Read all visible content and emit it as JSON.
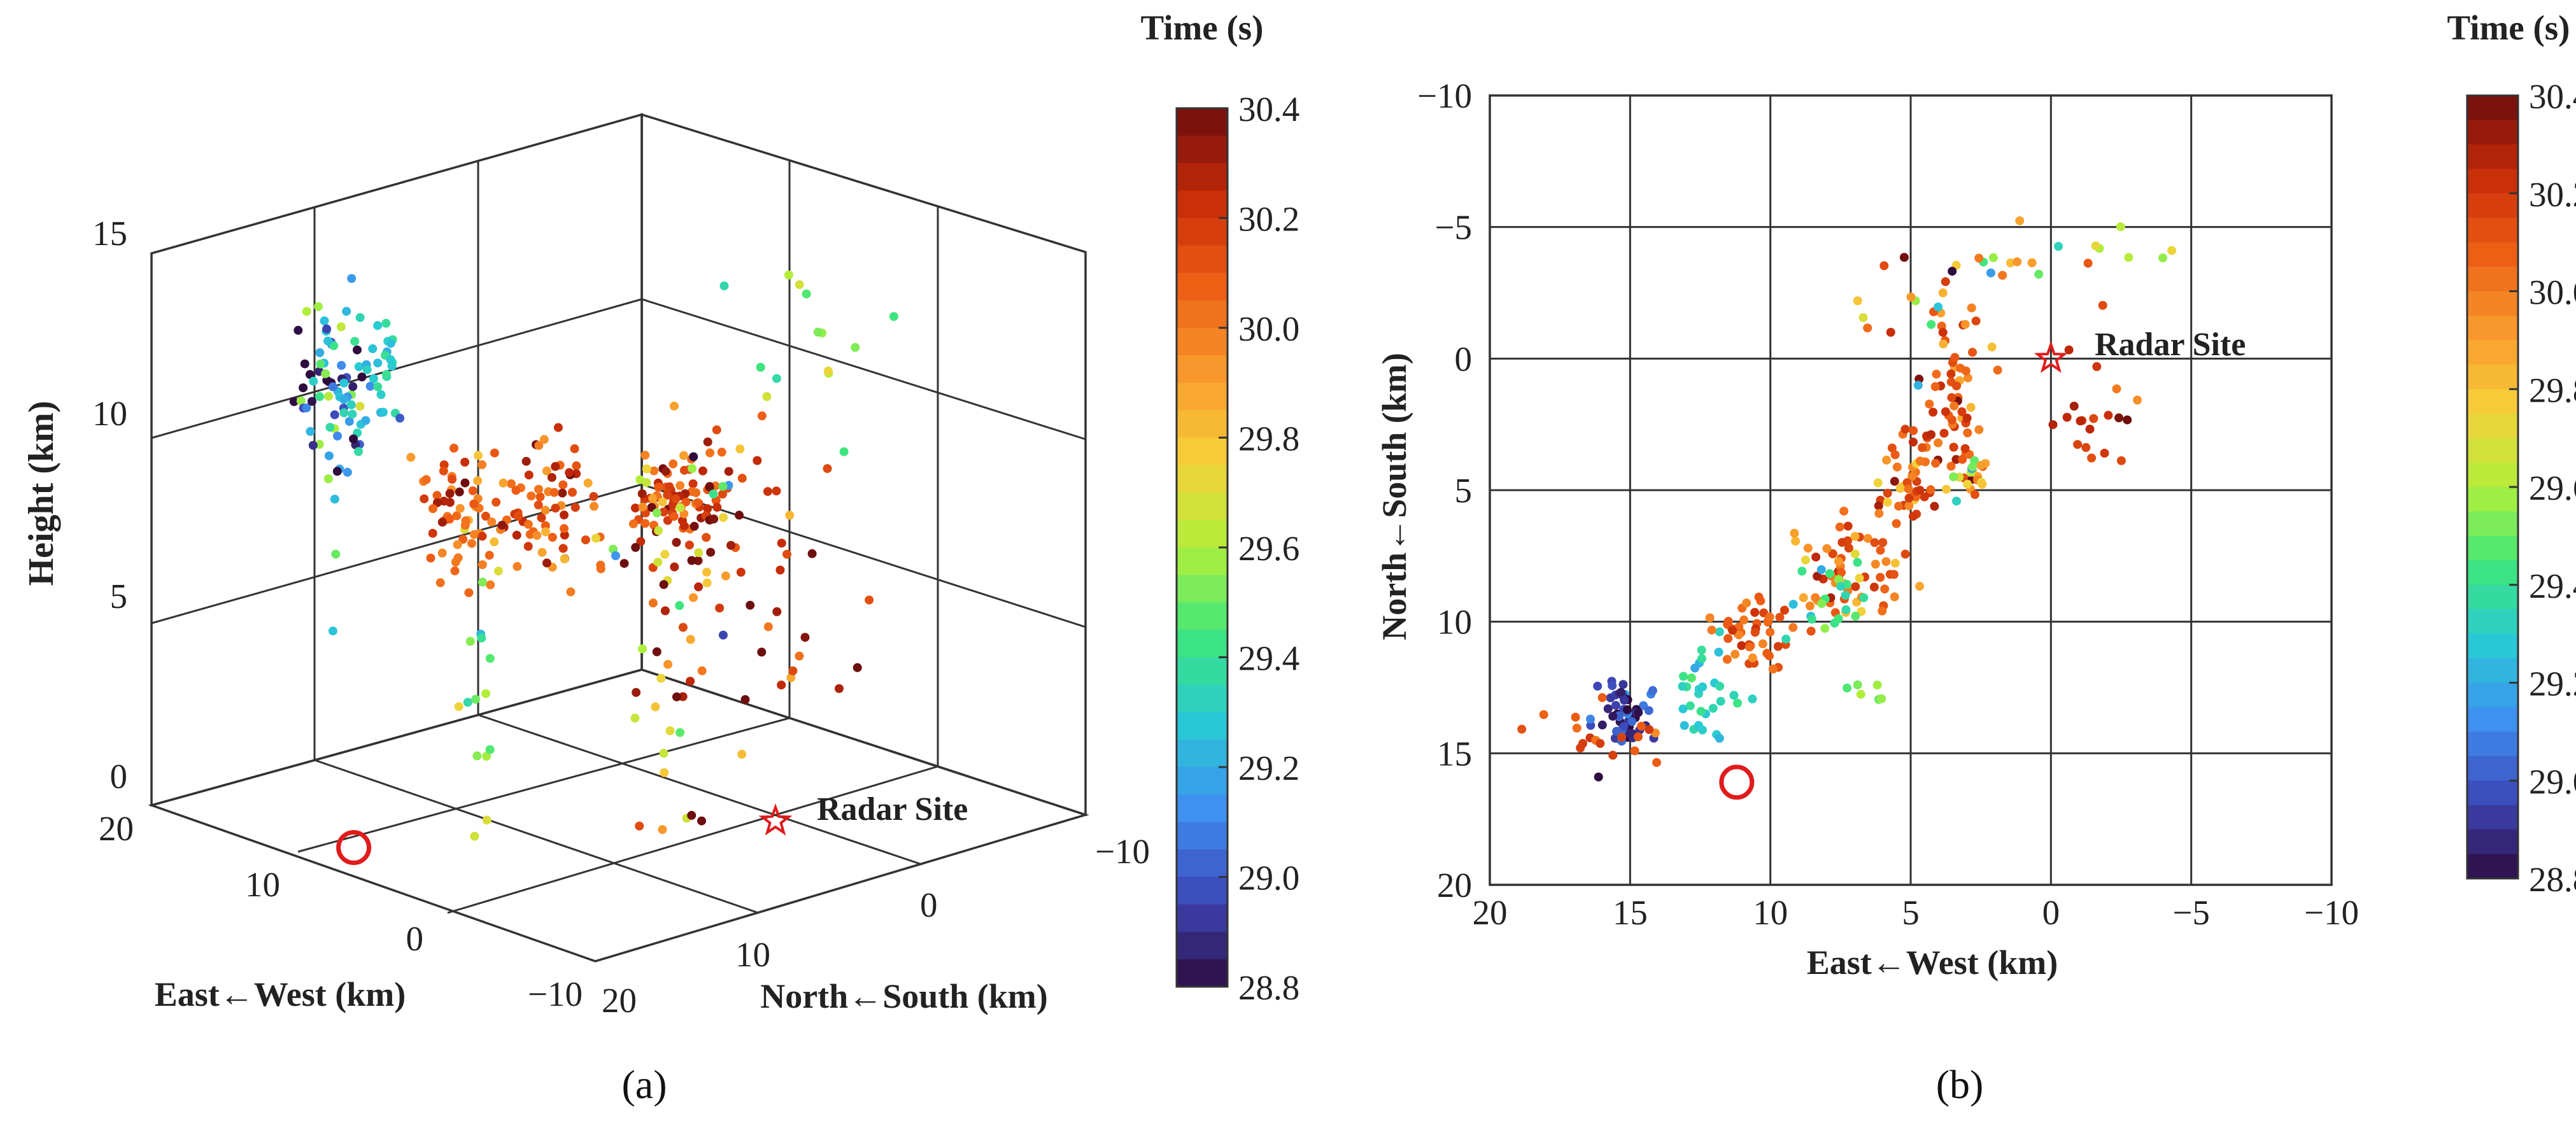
{
  "colorbar": {
    "title": "Time (s)",
    "min": 28.8,
    "max": 30.4,
    "ticks": [
      "30.4",
      "30.2",
      "30.0",
      "29.8",
      "29.6",
      "29.4",
      "29.2",
      "29.0",
      "28.8"
    ],
    "stops": [
      "#2e0a3f",
      "#3d47b8",
      "#3f8ff0",
      "#29c9d6",
      "#3ee67c",
      "#b0ef3a",
      "#f7cf3a",
      "#f8992c",
      "#ee5d15",
      "#c52a08",
      "#6e0e0e"
    ]
  },
  "chart_data": [
    {
      "type": "scatter",
      "panel_caption": "(a)",
      "view": "3d",
      "zlabel": "Height (km)",
      "xlabel": "East←West (km)",
      "ylabel": "North←South (km)",
      "zticks": [
        "15",
        "10",
        "5",
        "0"
      ],
      "xticks": [
        "20",
        "10",
        "0",
        "−10"
      ],
      "yticks": [
        "−10",
        "0",
        "10",
        "20"
      ],
      "ew_range": [
        -10,
        20
      ],
      "ns_range": [
        -10,
        20
      ],
      "height_range": [
        0,
        15
      ],
      "radar_label": "Radar Site",
      "radar_site": {
        "ew": 0,
        "ns": 0,
        "h": 0
      },
      "storm_marker": {
        "ew": 11.2,
        "ns": 16.1,
        "h": 0
      },
      "clusters": [
        {
          "ew": 15,
          "ns": 13.5,
          "h": 11.5,
          "n": 70,
          "t": 29.1,
          "se": 0.8,
          "sn": 1.0,
          "sh": 1.6,
          "st": 0.35
        },
        {
          "ew": 12,
          "ns": 13.8,
          "h": 12.6,
          "n": 30,
          "t": 29.3,
          "se": 0.6,
          "sn": 0.8,
          "sh": 0.9,
          "st": 0.07
        },
        {
          "ew": 10,
          "ns": 10.2,
          "h": 8.5,
          "n": 60,
          "t": 30.05,
          "se": 1.0,
          "sn": 0.8,
          "sh": 0.9,
          "st": 0.15
        },
        {
          "ew": 7.0,
          "ns": 7.5,
          "h": 8.6,
          "n": 70,
          "t": 30.1,
          "se": 1.2,
          "sn": 1.0,
          "sh": 0.8,
          "st": 0.15
        },
        {
          "ew": 3.5,
          "ns": 2.5,
          "h": 8.8,
          "n": 70,
          "t": 30.15,
          "se": 1.0,
          "sn": 1.5,
          "sh": 0.5,
          "st": 0.12
        },
        {
          "ew": 2.8,
          "ns": 4.5,
          "h": 4.8,
          "n": 40,
          "t": 29.95,
          "se": 1.0,
          "sn": 1.2,
          "sh": 2.3,
          "st": 0.3
        },
        {
          "ew": 8.5,
          "ns": -3.5,
          "h": 6.5,
          "n": 35,
          "t": 29.8,
          "se": 2.0,
          "sn": 1.5,
          "sh": 1.6,
          "st": 0.4
        },
        {
          "ew": -1.0,
          "ns": 1.0,
          "h": 6.5,
          "n": 30,
          "t": 30.2,
          "se": 1.3,
          "sn": 1.8,
          "sh": 2.2,
          "st": 0.2
        },
        {
          "ew": 1.5,
          "ns": -3.8,
          "h": 12.5,
          "n": 14,
          "t": 29.5,
          "se": 2.5,
          "sn": 1.2,
          "sh": 1.5,
          "st": 0.15
        },
        {
          "ew": 6.5,
          "ns": 12.5,
          "h": 4.0,
          "n": 14,
          "t": 29.55,
          "se": 0.8,
          "sn": 0.5,
          "sh": 2.0,
          "st": 0.12
        }
      ]
    },
    {
      "type": "scatter",
      "panel_caption": "(b)",
      "view": "plan",
      "xlabel": "East←West (km)",
      "ylabel": "North←South (km)",
      "x_range": [
        20,
        -10
      ],
      "y_range": [
        -10,
        20
      ],
      "xticks": [
        "20",
        "15",
        "10",
        "5",
        "0",
        "−5",
        "−10"
      ],
      "yticks": [
        "−10",
        "−5",
        "0",
        "5",
        "10",
        "15",
        "20"
      ],
      "radar_label": "Radar Site",
      "radar_site": {
        "x": 0,
        "y": 0
      },
      "storm_marker": {
        "x": 11.2,
        "y": 16.1
      },
      "clusters": [
        {
          "x": 15.3,
          "y": 13.5,
          "n": 55,
          "t": 28.95,
          "sx": 0.5,
          "sy": 0.7,
          "st": 0.12
        },
        {
          "x": 16.2,
          "y": 14.2,
          "n": 18,
          "t": 30.1,
          "sx": 1.2,
          "sy": 0.5,
          "st": 0.08
        },
        {
          "x": 12.3,
          "y": 13.2,
          "n": 30,
          "t": 29.3,
          "sx": 0.6,
          "sy": 0.9,
          "st": 0.08
        },
        {
          "x": 10.5,
          "y": 10.5,
          "n": 45,
          "t": 30.1,
          "sx": 0.8,
          "sy": 0.8,
          "st": 0.1
        },
        {
          "x": 7.3,
          "y": 8.2,
          "n": 60,
          "t": 30.05,
          "sx": 1.1,
          "sy": 0.9,
          "st": 0.15
        },
        {
          "x": 5.0,
          "y": 5.0,
          "n": 50,
          "t": 30.05,
          "sx": 0.7,
          "sy": 1.0,
          "st": 0.15
        },
        {
          "x": 3.5,
          "y": 2.0,
          "n": 55,
          "t": 30.1,
          "sx": 0.6,
          "sy": 1.4,
          "st": 0.12
        },
        {
          "x": 2.8,
          "y": 4.5,
          "n": 18,
          "t": 29.7,
          "sx": 0.3,
          "sy": 0.4,
          "st": 0.3
        },
        {
          "x": 4.5,
          "y": -2.0,
          "n": 20,
          "t": 30.0,
          "sx": 1.2,
          "sy": 1.2,
          "st": 0.35
        },
        {
          "x": -1.5,
          "y": 1.5,
          "n": 20,
          "t": 30.2,
          "sx": 0.8,
          "sy": 1.5,
          "st": 0.15
        },
        {
          "x": 8.0,
          "y": 9.5,
          "n": 20,
          "t": 29.4,
          "sx": 0.8,
          "sy": 1.0,
          "st": 0.1
        },
        {
          "x": 6.5,
          "y": 12.7,
          "n": 6,
          "t": 29.55,
          "sx": 0.6,
          "sy": 0.3,
          "st": 0.05
        },
        {
          "x": -2.0,
          "y": -3.8,
          "n": 10,
          "t": 29.6,
          "sx": 1.5,
          "sy": 0.5,
          "st": 0.2
        },
        {
          "x": 1.5,
          "y": -3.6,
          "n": 10,
          "t": 29.7,
          "sx": 1.5,
          "sy": 0.3,
          "st": 0.4
        }
      ]
    }
  ]
}
